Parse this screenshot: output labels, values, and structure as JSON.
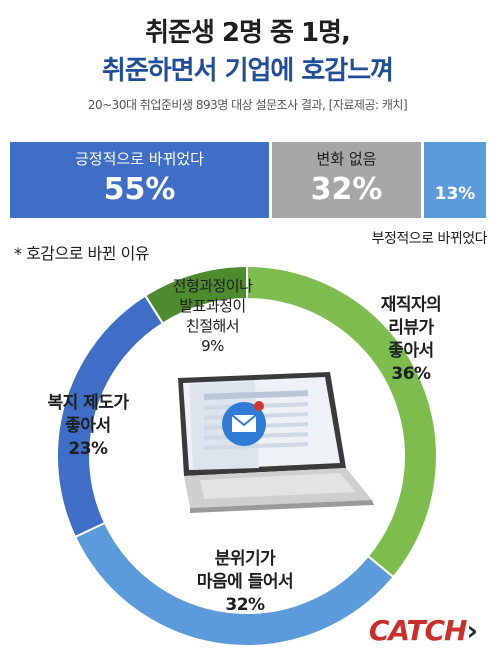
{
  "header": {
    "title_line1": "취준생 2명 중 1명,",
    "title_line2": "취준하면서 기업에 호감느껴",
    "subtitle": "20~30대 취업준비생 893명 대상 설문조사 결과, [자료제공: 캐치]"
  },
  "bar": {
    "positive": {
      "label": "긍정적으로 바뀌었다",
      "value": 55,
      "display": "55%",
      "color": "#3f6ec6"
    },
    "neutral": {
      "label": "변화 없음",
      "value": 32,
      "display": "32%",
      "color": "#a6a6a6"
    },
    "negative": {
      "label": "부정적으로 바뀌었다",
      "value": 13,
      "display": "13%",
      "color": "#5b9bdc"
    }
  },
  "section_label": "* 호감으로 바뀐 이유",
  "chart_data": [
    {
      "type": "bar",
      "stacked": true,
      "orientation": "horizontal",
      "categories": [
        "긍정적으로 바뀌었다",
        "변화 없음",
        "부정적으로 바뀌었다"
      ],
      "values": [
        55,
        32,
        13
      ],
      "unit": "%"
    },
    {
      "type": "pie",
      "donut": true,
      "title": "* 호감으로 바뀐 이유",
      "slices": [
        {
          "label": "재직자의 리뷰가 좋아서",
          "value": 36,
          "color": "#7cbd4e"
        },
        {
          "label": "분위기가 마음에 들어서",
          "value": 32,
          "color": "#5b9bdc"
        },
        {
          "label": "복지 제도가 좋아서",
          "value": 23,
          "color": "#3f6ec6"
        },
        {
          "label": "전형과정이나 발표과정이 친절해서",
          "value": 9,
          "color": "#4e8a2e"
        }
      ]
    }
  ],
  "donut_labels": {
    "review": {
      "line1": "재직자의",
      "line2": "리뷰가",
      "line3": "좋아서",
      "pct": "36%"
    },
    "atmosphere": {
      "line1": "분위기가",
      "line2": "마음에 들어서",
      "pct": "32%"
    },
    "welfare": {
      "line1": "복지 제도가",
      "line2": "좋아서",
      "pct": "23%"
    },
    "process": {
      "line1": "전형과정이나",
      "line2": "발표과정이",
      "line3": "친절해서",
      "pct": "9%"
    }
  },
  "brand": {
    "logo_text": "CATCH",
    "logo_chevron": "›"
  }
}
